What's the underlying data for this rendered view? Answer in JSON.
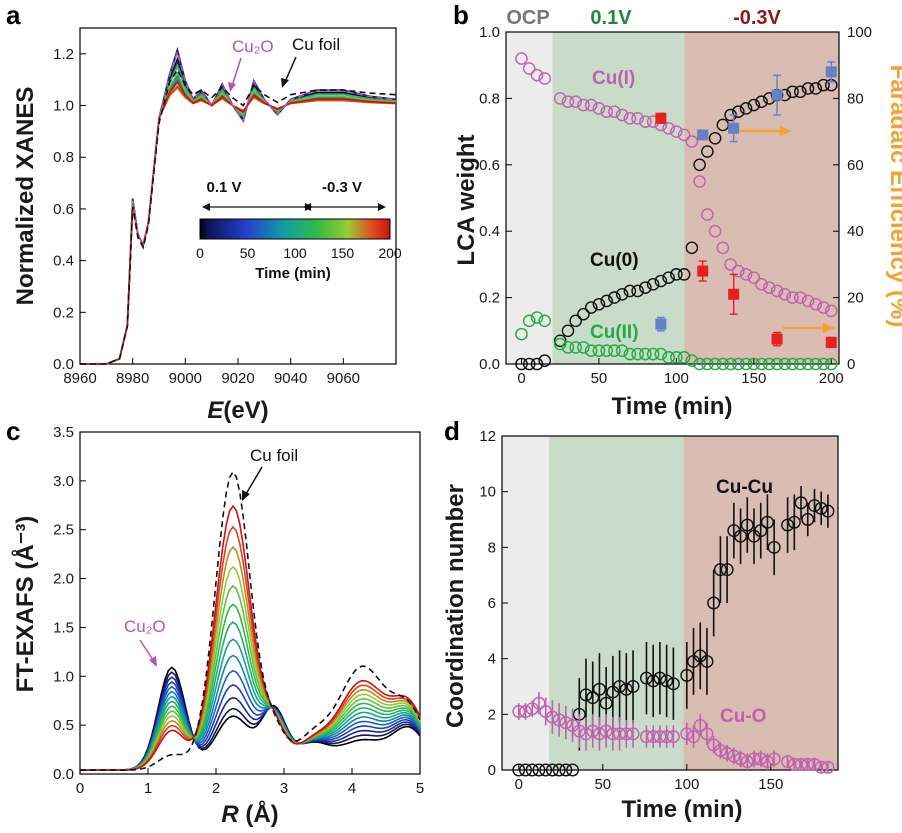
{
  "panels": {
    "a": {
      "letter": "a",
      "xlabel_italic": "E",
      "xlabel_rest": "(eV)",
      "ylabel": "Normalized XANES",
      "xticks": [
        "8960",
        "8980",
        "9000",
        "9020",
        "9040",
        "9060"
      ],
      "yticks": [
        "0.0",
        "0.2",
        "0.4",
        "0.6",
        "0.8",
        "1.0",
        "1.2"
      ],
      "ann_cu2o": "Cu₂O",
      "ann_cufoil": "Cu foil",
      "cb_label_01": "0.1 V",
      "cb_label_m03": "-0.3 V",
      "cb_ticks": [
        "0",
        "50",
        "100",
        "150",
        "200"
      ],
      "cb_title": "Time (min)"
    },
    "b": {
      "letter": "b",
      "ylabel": "LCA weight",
      "y2label": "Faradaic Efficiency (%)",
      "xlabel": "Time (min)",
      "region_ocp": "OCP",
      "region_01": "0.1V",
      "region_m03": "-0.3V",
      "xticks": [
        "0",
        "50",
        "100",
        "150",
        "200"
      ],
      "yticks": [
        "0.0",
        "0.2",
        "0.4",
        "0.6",
        "0.8",
        "1.0"
      ],
      "y2ticks": [
        "0",
        "20",
        "40",
        "60",
        "80",
        "100"
      ],
      "label_cu1": "Cu(I)",
      "label_cu0": "Cu(0)",
      "label_cu2": "Cu(II)"
    },
    "c": {
      "letter": "c",
      "ylabel": "FT-EXAFS (Å⁻³)",
      "xlabel_italic": "R",
      "xlabel_rest": " (Å)",
      "xticks": [
        "0",
        "1",
        "2",
        "3",
        "4",
        "5"
      ],
      "yticks": [
        "0.0",
        "0.5",
        "1.0",
        "1.5",
        "2.0",
        "2.5",
        "3.0",
        "3.5"
      ],
      "ann_cu2o": "Cu₂O",
      "ann_cufoil": "Cu foil"
    },
    "d": {
      "letter": "d",
      "ylabel": "Coordination number",
      "xlabel": "Time (min)",
      "xticks": [
        "0",
        "50",
        "100",
        "150"
      ],
      "yticks": [
        "0",
        "2",
        "4",
        "6",
        "8",
        "10",
        "12"
      ],
      "label_cucu": "Cu-Cu",
      "label_cuo": "Cu-O"
    }
  },
  "colors": {
    "ocp_region": "#ececec",
    "v01_region": "#c9dcc9",
    "vm03_region": "#d9bcb2",
    "cu1": "#c060b0",
    "cu0": "#111111",
    "cu2": "#22aa44",
    "fe_blue": "#6680c8",
    "fe_red": "#e62020",
    "orange": "#f5a030",
    "ocp_text": "#777777",
    "v01_text": "#1a8a3a",
    "vm03_text": "#8b1a1a"
  },
  "chart_data": [
    {
      "panel": "b",
      "type": "scatter",
      "x_range": [
        -10,
        205
      ],
      "y_range": [
        0,
        1.0
      ],
      "y2_range": [
        0,
        100
      ],
      "regions": [
        {
          "name": "OCP",
          "x": [
            -10,
            20
          ]
        },
        {
          "name": "0.1V",
          "x": [
            20,
            105
          ]
        },
        {
          "name": "-0.3V",
          "x": [
            105,
            205
          ]
        }
      ],
      "series": [
        {
          "name": "Cu(I)",
          "style": "open-circle",
          "x": [
            0,
            5,
            10,
            15,
            25,
            30,
            35,
            40,
            45,
            50,
            55,
            60,
            65,
            70,
            75,
            80,
            85,
            90,
            95,
            100,
            105,
            110,
            115,
            120,
            125,
            130,
            135,
            140,
            145,
            150,
            155,
            160,
            165,
            170,
            175,
            180,
            185,
            190,
            195,
            200
          ],
          "y": [
            0.92,
            0.89,
            0.87,
            0.86,
            0.8,
            0.79,
            0.79,
            0.78,
            0.78,
            0.77,
            0.76,
            0.76,
            0.75,
            0.74,
            0.74,
            0.73,
            0.73,
            0.72,
            0.71,
            0.7,
            0.69,
            0.67,
            0.55,
            0.45,
            0.4,
            0.35,
            0.3,
            0.28,
            0.27,
            0.26,
            0.24,
            0.23,
            0.22,
            0.21,
            0.2,
            0.2,
            0.19,
            0.18,
            0.17,
            0.16
          ]
        },
        {
          "name": "Cu(0)",
          "style": "open-circle",
          "x": [
            0,
            5,
            10,
            15,
            25,
            30,
            35,
            40,
            45,
            50,
            55,
            60,
            65,
            70,
            75,
            80,
            85,
            90,
            95,
            100,
            105,
            110,
            115,
            120,
            125,
            130,
            135,
            140,
            145,
            150,
            155,
            160,
            165,
            170,
            175,
            180,
            185,
            190,
            195,
            200
          ],
          "y": [
            0.0,
            0.0,
            0.0,
            0.01,
            0.07,
            0.1,
            0.13,
            0.15,
            0.17,
            0.18,
            0.19,
            0.2,
            0.21,
            0.22,
            0.22,
            0.23,
            0.24,
            0.25,
            0.26,
            0.27,
            0.27,
            0.35,
            0.6,
            0.64,
            0.68,
            0.72,
            0.75,
            0.76,
            0.77,
            0.78,
            0.79,
            0.8,
            0.81,
            0.81,
            0.82,
            0.82,
            0.83,
            0.83,
            0.84,
            0.84
          ]
        },
        {
          "name": "Cu(II)",
          "style": "open-circle",
          "x": [
            0,
            5,
            10,
            15,
            25,
            30,
            35,
            40,
            45,
            50,
            55,
            60,
            65,
            70,
            75,
            80,
            85,
            90,
            95,
            100,
            105,
            110,
            115,
            120,
            125,
            130,
            135,
            140,
            145,
            150,
            155,
            160,
            165,
            170,
            175,
            180,
            185,
            190,
            195,
            200
          ],
          "y": [
            0.09,
            0.13,
            0.14,
            0.13,
            0.06,
            0.05,
            0.05,
            0.05,
            0.04,
            0.04,
            0.04,
            0.04,
            0.04,
            0.03,
            0.03,
            0.03,
            0.03,
            0.03,
            0.02,
            0.02,
            0.02,
            0.01,
            0.0,
            0.0,
            0.0,
            0.0,
            0.0,
            0.0,
            0.0,
            0.0,
            0.0,
            0.0,
            0.0,
            0.0,
            0.0,
            0.0,
            0.0,
            0.0,
            0.0,
            0.0
          ]
        },
        {
          "name": "FE blue",
          "axis": "y2",
          "style": "filled-square",
          "x": [
            90,
            117,
            137,
            165,
            200
          ],
          "y": [
            12,
            69,
            71,
            81,
            88
          ],
          "err": [
            2,
            0,
            4,
            6,
            3
          ]
        },
        {
          "name": "FE red",
          "axis": "y2",
          "style": "filled-square",
          "x": [
            90,
            117,
            137,
            165,
            200
          ],
          "y": [
            74,
            28,
            21,
            7.5,
            6.5
          ],
          "err": [
            1.5,
            3,
            6,
            2,
            1.5
          ]
        }
      ]
    },
    {
      "panel": "d",
      "type": "scatter",
      "x_range": [
        -10,
        190
      ],
      "y_range": [
        0,
        12
      ],
      "regions": [
        {
          "name": "OCP",
          "x": [
            -10,
            18
          ]
        },
        {
          "name": "0.1V",
          "x": [
            18,
            98
          ]
        },
        {
          "name": "-0.3V",
          "x": [
            98,
            190
          ]
        }
      ],
      "series": [
        {
          "name": "Cu-Cu",
          "style": "open-circle",
          "x": [
            0,
            4,
            8,
            12,
            16,
            20,
            24,
            28,
            32,
            36,
            40,
            44,
            48,
            52,
            56,
            60,
            64,
            68,
            76,
            80,
            84,
            88,
            92,
            100,
            104,
            108,
            112,
            116,
            120,
            124,
            128,
            132,
            136,
            140,
            144,
            148,
            152,
            160,
            164,
            168,
            172,
            176,
            180,
            184
          ],
          "y": [
            0,
            0,
            0,
            0,
            0,
            0,
            0,
            0,
            0,
            2.0,
            2.7,
            2.6,
            2.9,
            2.4,
            2.8,
            3.0,
            2.9,
            3.0,
            3.3,
            3.2,
            3.3,
            3.2,
            3.1,
            3.4,
            3.9,
            4.1,
            3.9,
            6.0,
            7.2,
            7.2,
            8.6,
            8.4,
            8.8,
            8.4,
            8.6,
            8.9,
            8.0,
            8.8,
            8.9,
            9.6,
            9.0,
            9.5,
            9.4,
            9.3
          ],
          "err": [
            0,
            0,
            0,
            0,
            0,
            0,
            0,
            0,
            0,
            1.3,
            1.3,
            1.3,
            1.3,
            1.3,
            1.3,
            1.3,
            1.3,
            1.3,
            1.3,
            1.3,
            1.3,
            1.3,
            1.3,
            1.2,
            1.2,
            1.2,
            1.2,
            1.2,
            1.2,
            1.2,
            1.0,
            1.0,
            1.0,
            1.0,
            1.0,
            1.0,
            1.0,
            1.0,
            1.0,
            0.6,
            0.6,
            0.6,
            0.6,
            0.6
          ]
        },
        {
          "name": "Cu-O",
          "style": "open-circle",
          "x": [
            0,
            4,
            8,
            12,
            16,
            20,
            24,
            28,
            32,
            36,
            40,
            44,
            48,
            52,
            56,
            60,
            64,
            68,
            76,
            80,
            84,
            88,
            92,
            100,
            104,
            108,
            112,
            116,
            120,
            124,
            128,
            132,
            136,
            140,
            144,
            148,
            152,
            160,
            164,
            168,
            172,
            176,
            180,
            184
          ],
          "y": [
            2.1,
            2.1,
            2.2,
            2.4,
            2.1,
            1.9,
            1.8,
            1.7,
            1.6,
            1.4,
            1.3,
            1.4,
            1.3,
            1.4,
            1.3,
            1.3,
            1.3,
            1.3,
            1.2,
            1.2,
            1.2,
            1.2,
            1.2,
            1.3,
            1.2,
            1.6,
            1.3,
            0.9,
            0.7,
            0.6,
            0.5,
            0.4,
            0.3,
            0.4,
            0.4,
            0.3,
            0.4,
            0.3,
            0.2,
            0.2,
            0.2,
            0.2,
            0.1,
            0.1
          ],
          "err": [
            0.3,
            0.3,
            0.3,
            0.4,
            0.5,
            0.6,
            0.6,
            0.6,
            0.6,
            0.6,
            0.6,
            0.6,
            0.6,
            0.6,
            0.6,
            0.6,
            0.5,
            0.5,
            0.4,
            0.4,
            0.4,
            0.4,
            0.4,
            0.4,
            0.4,
            0.4,
            0.4,
            0.3,
            0.3,
            0.3,
            0.3,
            0.3,
            0.3,
            0.3,
            0.3,
            0.3,
            0.3,
            0.2,
            0.2,
            0.2,
            0.2,
            0.2,
            0.2,
            0.2
          ]
        }
      ]
    },
    {
      "panel": "a",
      "type": "line",
      "x_range": [
        8960,
        9080
      ],
      "y_range": [
        0,
        1.3
      ],
      "colorbar_range_min": [
        0,
        200
      ],
      "curve_count": 14,
      "shape_points_x": [
        8960,
        8970,
        8975,
        8978,
        8980,
        8982,
        8984,
        8986,
        8990,
        8994,
        8997,
        9000,
        9003,
        9006,
        9010,
        9014,
        9018,
        9022,
        9026,
        9030,
        9035,
        9040,
        9050,
        9060,
        9070,
        9080
      ],
      "shape_points_y": [
        0,
        0,
        0.02,
        0.15,
        0.62,
        0.5,
        0.46,
        0.55,
        0.95,
        1.1,
        1.18,
        1.08,
        1.02,
        1.05,
        1.0,
        1.07,
        1.0,
        0.95,
        1.08,
        1.02,
        0.97,
        1.02,
        1.05,
        1.05,
        1.03,
        1.02
      ]
    },
    {
      "panel": "c",
      "type": "line",
      "x_range": [
        0,
        5
      ],
      "y_range": [
        0,
        3.5
      ],
      "curve_count": 14,
      "peak_cu2o_R": 1.5,
      "peak_cucu_R": 2.2,
      "cu_foil_peak_height": 3.15,
      "final_peak_height": 2.7,
      "initial_peak_height": 0.55
    }
  ]
}
